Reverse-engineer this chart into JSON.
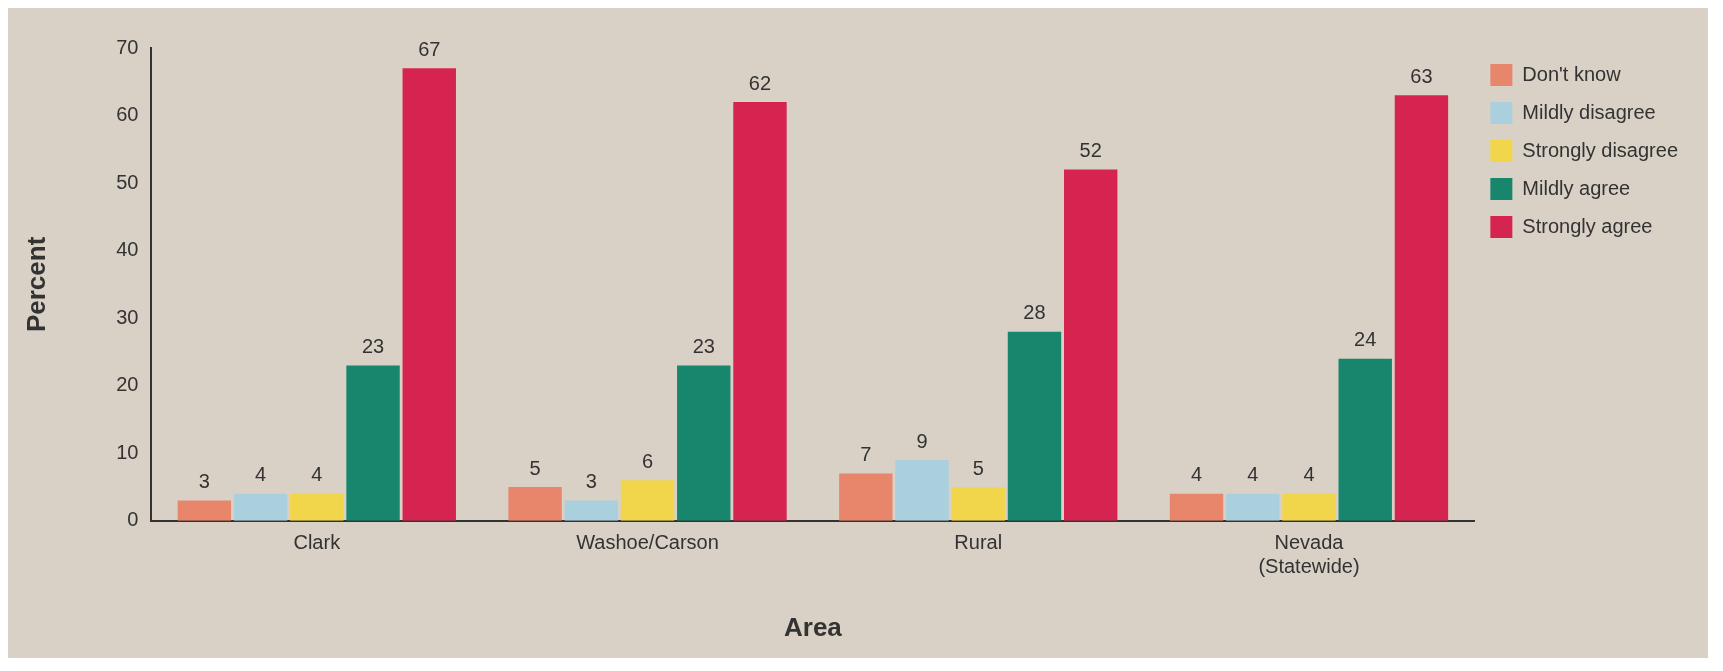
{
  "chart_data": {
    "type": "bar",
    "xlabel": "Area",
    "ylabel": "Percent",
    "categories": [
      "Clark",
      "Washoe/Carson",
      "Rural",
      "Nevada\n(Statewide)"
    ],
    "series": [
      {
        "name": "Don't know",
        "color": "#e8866c",
        "values": [
          3,
          5,
          7,
          4
        ]
      },
      {
        "name": "Mildly disagree",
        "color": "#a9d0dc",
        "values": [
          4,
          3,
          9,
          4
        ]
      },
      {
        "name": "Strongly disagree",
        "color": "#f1d64c",
        "values": [
          4,
          6,
          5,
          4
        ]
      },
      {
        "name": "Mildly agree",
        "color": "#17866c",
        "values": [
          23,
          23,
          28,
          24
        ]
      },
      {
        "name": "Strongly agree",
        "color": "#d62450",
        "values": [
          67,
          62,
          52,
          63
        ]
      }
    ],
    "ylim": [
      0,
      70
    ],
    "yticks": [
      0,
      10,
      20,
      30,
      40,
      50,
      60,
      70
    ],
    "grid": false,
    "legend": "right",
    "data_labels": true
  }
}
